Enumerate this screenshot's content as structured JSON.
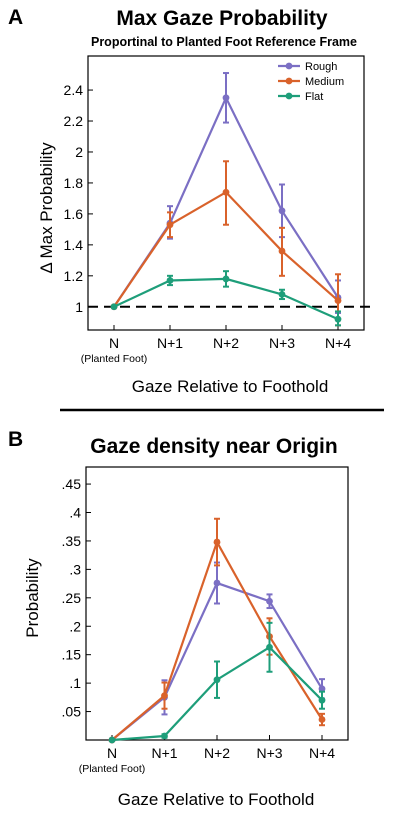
{
  "divider": true,
  "chart_data": [
    {
      "panel_label": "A",
      "type": "line",
      "title": "Max Gaze Probability",
      "subtitle": "Proportinal to Planted Foot Reference Frame",
      "xlabel": "Gaze Relative to Foothold",
      "ylabel": "Δ  Max Probability",
      "categories": [
        "N",
        "N+1",
        "N+2",
        "N+3",
        "N+4"
      ],
      "category_sublabels": [
        "(Planted Foot)",
        "",
        "",
        "",
        ""
      ],
      "ylim": [
        0.85,
        2.62
      ],
      "yticks": [
        1,
        1.2,
        1.4,
        1.6,
        1.8,
        2,
        2.2,
        2.4
      ],
      "ytick_labels": [
        "1",
        "1.2",
        "1.4",
        "1.6",
        "1.8",
        "2",
        "2.2",
        "2.4"
      ],
      "reference_line": {
        "y": 1,
        "style": "dashed"
      },
      "legend": {
        "position": "top-right",
        "entries": [
          "Rough",
          "Medium",
          "Flat"
        ]
      },
      "series": [
        {
          "name": "Rough",
          "color": "#7B6FC4",
          "values": [
            1.0,
            1.54,
            2.35,
            1.62,
            1.06
          ],
          "err_low": [
            1.0,
            1.44,
            2.19,
            1.45,
            0.96
          ],
          "err_high": [
            1.0,
            1.65,
            2.51,
            1.79,
            1.17
          ]
        },
        {
          "name": "Medium",
          "color": "#D9622B",
          "values": [
            1.0,
            1.53,
            1.74,
            1.36,
            1.04
          ],
          "err_low": [
            1.0,
            1.45,
            1.53,
            1.2,
            0.88
          ],
          "err_high": [
            1.0,
            1.61,
            1.94,
            1.51,
            1.21
          ]
        },
        {
          "name": "Flat",
          "color": "#1E9E7A",
          "values": [
            1.0,
            1.17,
            1.18,
            1.08,
            0.92
          ],
          "err_low": [
            1.0,
            1.14,
            1.13,
            1.05,
            0.88
          ],
          "err_high": [
            1.0,
            1.2,
            1.23,
            1.11,
            0.97
          ]
        }
      ]
    },
    {
      "panel_label": "B",
      "type": "line",
      "title": "Gaze density near Origin",
      "subtitle": "",
      "xlabel": "Gaze Relative to Foothold",
      "ylabel": "Probability",
      "categories": [
        "N",
        "N+1",
        "N+2",
        "N+3",
        "N+4"
      ],
      "category_sublabels": [
        "(Planted Foot)",
        "",
        "",
        "",
        ""
      ],
      "ylim": [
        0,
        0.48
      ],
      "yticks": [
        0.05,
        0.1,
        0.15,
        0.2,
        0.25,
        0.3,
        0.35,
        0.4,
        0.45
      ],
      "ytick_labels": [
        ".05",
        ".1",
        ".15",
        ".2",
        ".25",
        ".3",
        ".35",
        ".4",
        ".45"
      ],
      "series": [
        {
          "name": "Rough",
          "color": "#7B6FC4",
          "values": [
            0.0,
            0.075,
            0.276,
            0.244,
            0.09
          ],
          "err_low": [
            0.0,
            0.045,
            0.24,
            0.232,
            0.073
          ],
          "err_high": [
            0.0,
            0.105,
            0.312,
            0.256,
            0.107
          ]
        },
        {
          "name": "Medium",
          "color": "#D9622B",
          "values": [
            0.0,
            0.078,
            0.348,
            0.182,
            0.036
          ],
          "err_low": [
            0.0,
            0.055,
            0.307,
            0.15,
            0.026
          ],
          "err_high": [
            0.0,
            0.101,
            0.389,
            0.214,
            0.046
          ]
        },
        {
          "name": "Flat",
          "color": "#1E9E7A",
          "values": [
            0.0,
            0.007,
            0.106,
            0.163,
            0.07
          ],
          "err_low": [
            0.0,
            0.004,
            0.074,
            0.12,
            0.055
          ],
          "err_high": [
            0.0,
            0.01,
            0.138,
            0.206,
            0.085
          ]
        }
      ]
    }
  ]
}
